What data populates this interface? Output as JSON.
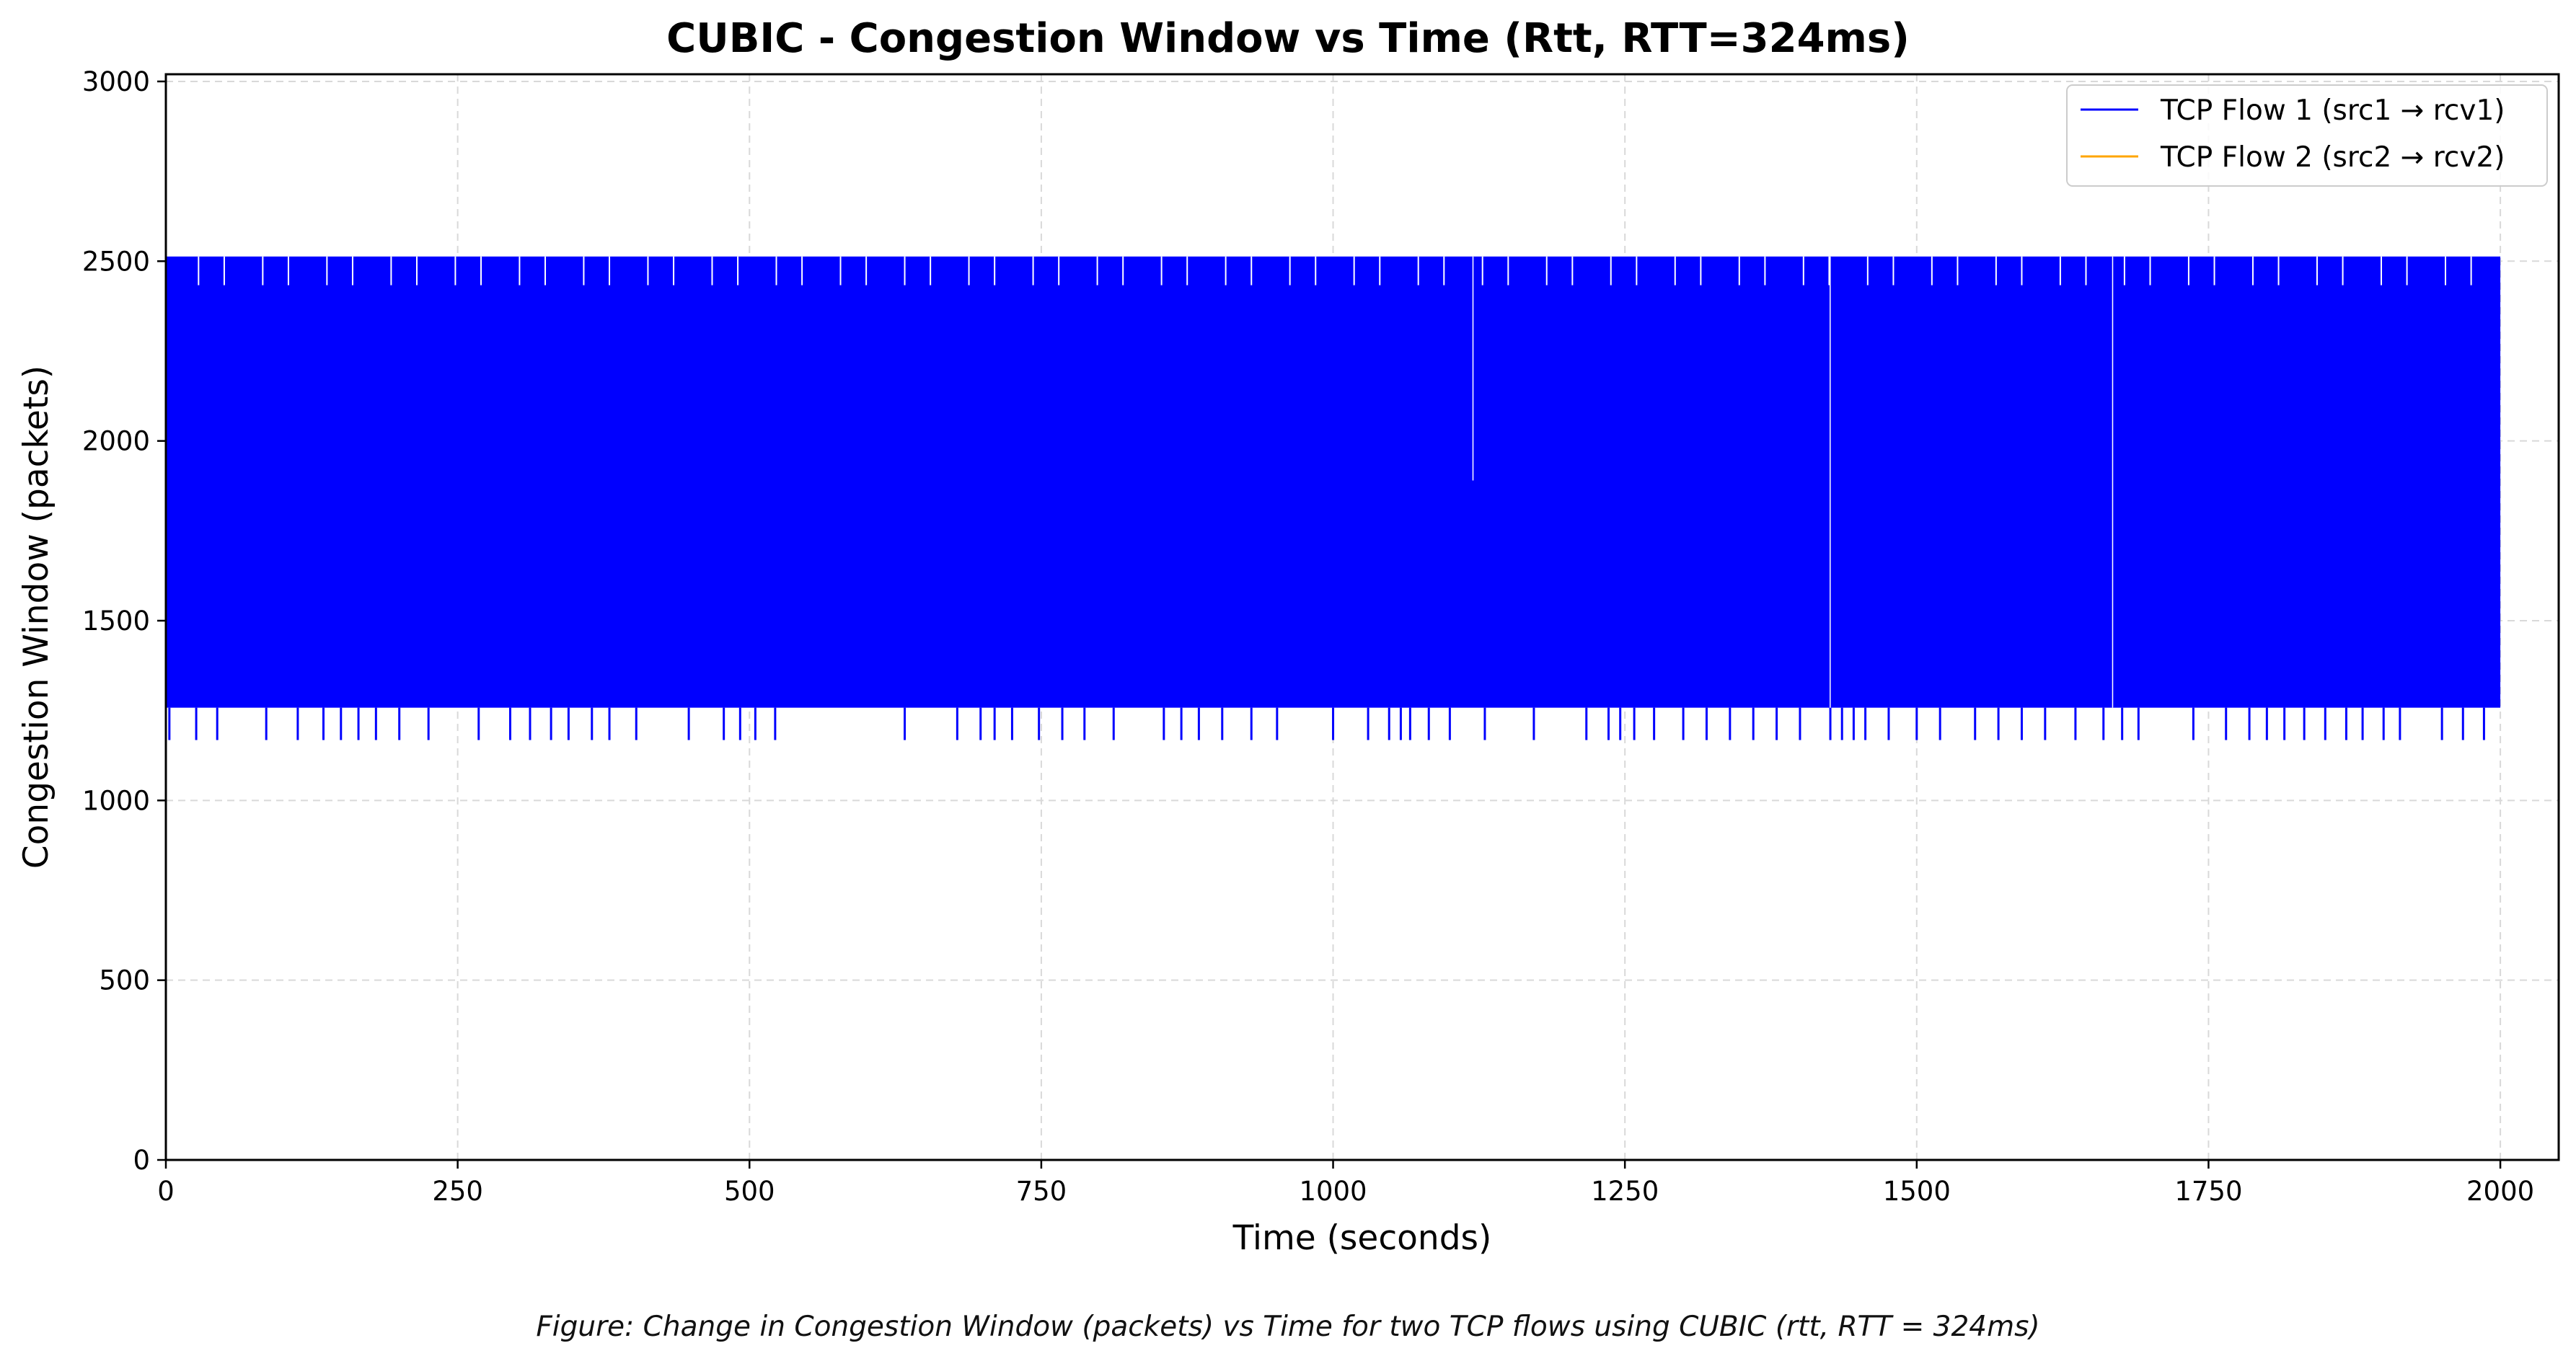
{
  "chart_data": {
    "type": "line",
    "title": "CUBIC - Congestion Window vs Time (Rtt, RTT=324ms)",
    "xlabel": "Time (seconds)",
    "ylabel": "Congestion Window (packets)",
    "xlim": [
      0,
      2050
    ],
    "ylim": [
      0,
      3020
    ],
    "xticks": [
      0,
      250,
      500,
      750,
      1000,
      1250,
      1500,
      1750,
      2000
    ],
    "yticks": [
      0,
      500,
      1000,
      1500,
      2000,
      2500,
      3000
    ],
    "grid": true,
    "legend_position": "top-right",
    "series": [
      {
        "name": "TCP Flow 1 (src1 → rcv1)",
        "color": "#0000ff",
        "pattern": "sawtooth oscillating between ~1258 and ~2513 packets over 0–2000 s",
        "cwnd_min": 1258,
        "cwnd_max": 2513,
        "low_dips_to": 1168,
        "low_dip_times": [
          3,
          26,
          44,
          86,
          113,
          135,
          150,
          165,
          180,
          200,
          225,
          268,
          295,
          312,
          330,
          345,
          365,
          380,
          403,
          448,
          478,
          492,
          505,
          522,
          633,
          678,
          698,
          710,
          725,
          748,
          768,
          787,
          812,
          855,
          870,
          885,
          905,
          930,
          952,
          1000,
          1030,
          1048,
          1058,
          1066,
          1082,
          1100,
          1130,
          1172,
          1217,
          1236,
          1246,
          1258,
          1275,
          1300,
          1320,
          1340,
          1360,
          1380,
          1400,
          1426,
          1436,
          1446,
          1456,
          1476,
          1500,
          1520,
          1550,
          1570,
          1590,
          1610,
          1636,
          1660,
          1676,
          1690,
          1737,
          1765,
          1785,
          1800,
          1815,
          1832,
          1850,
          1868,
          1882,
          1900,
          1914,
          1950,
          1968,
          1986
        ],
        "special_events": [
          {
            "time": 1120,
            "cwnd": 1890
          },
          {
            "time": 1426,
            "cwnd": 1258
          },
          {
            "time": 1668,
            "cwnd": 1258
          }
        ]
      },
      {
        "name": "TCP Flow 2 (src2 → rcv2)",
        "color": "#ffa500",
        "values": []
      }
    ]
  },
  "caption": "Figure: Change in Congestion Window (packets) vs Time for two TCP flows using CUBIC (rtt, RTT = 324ms)"
}
